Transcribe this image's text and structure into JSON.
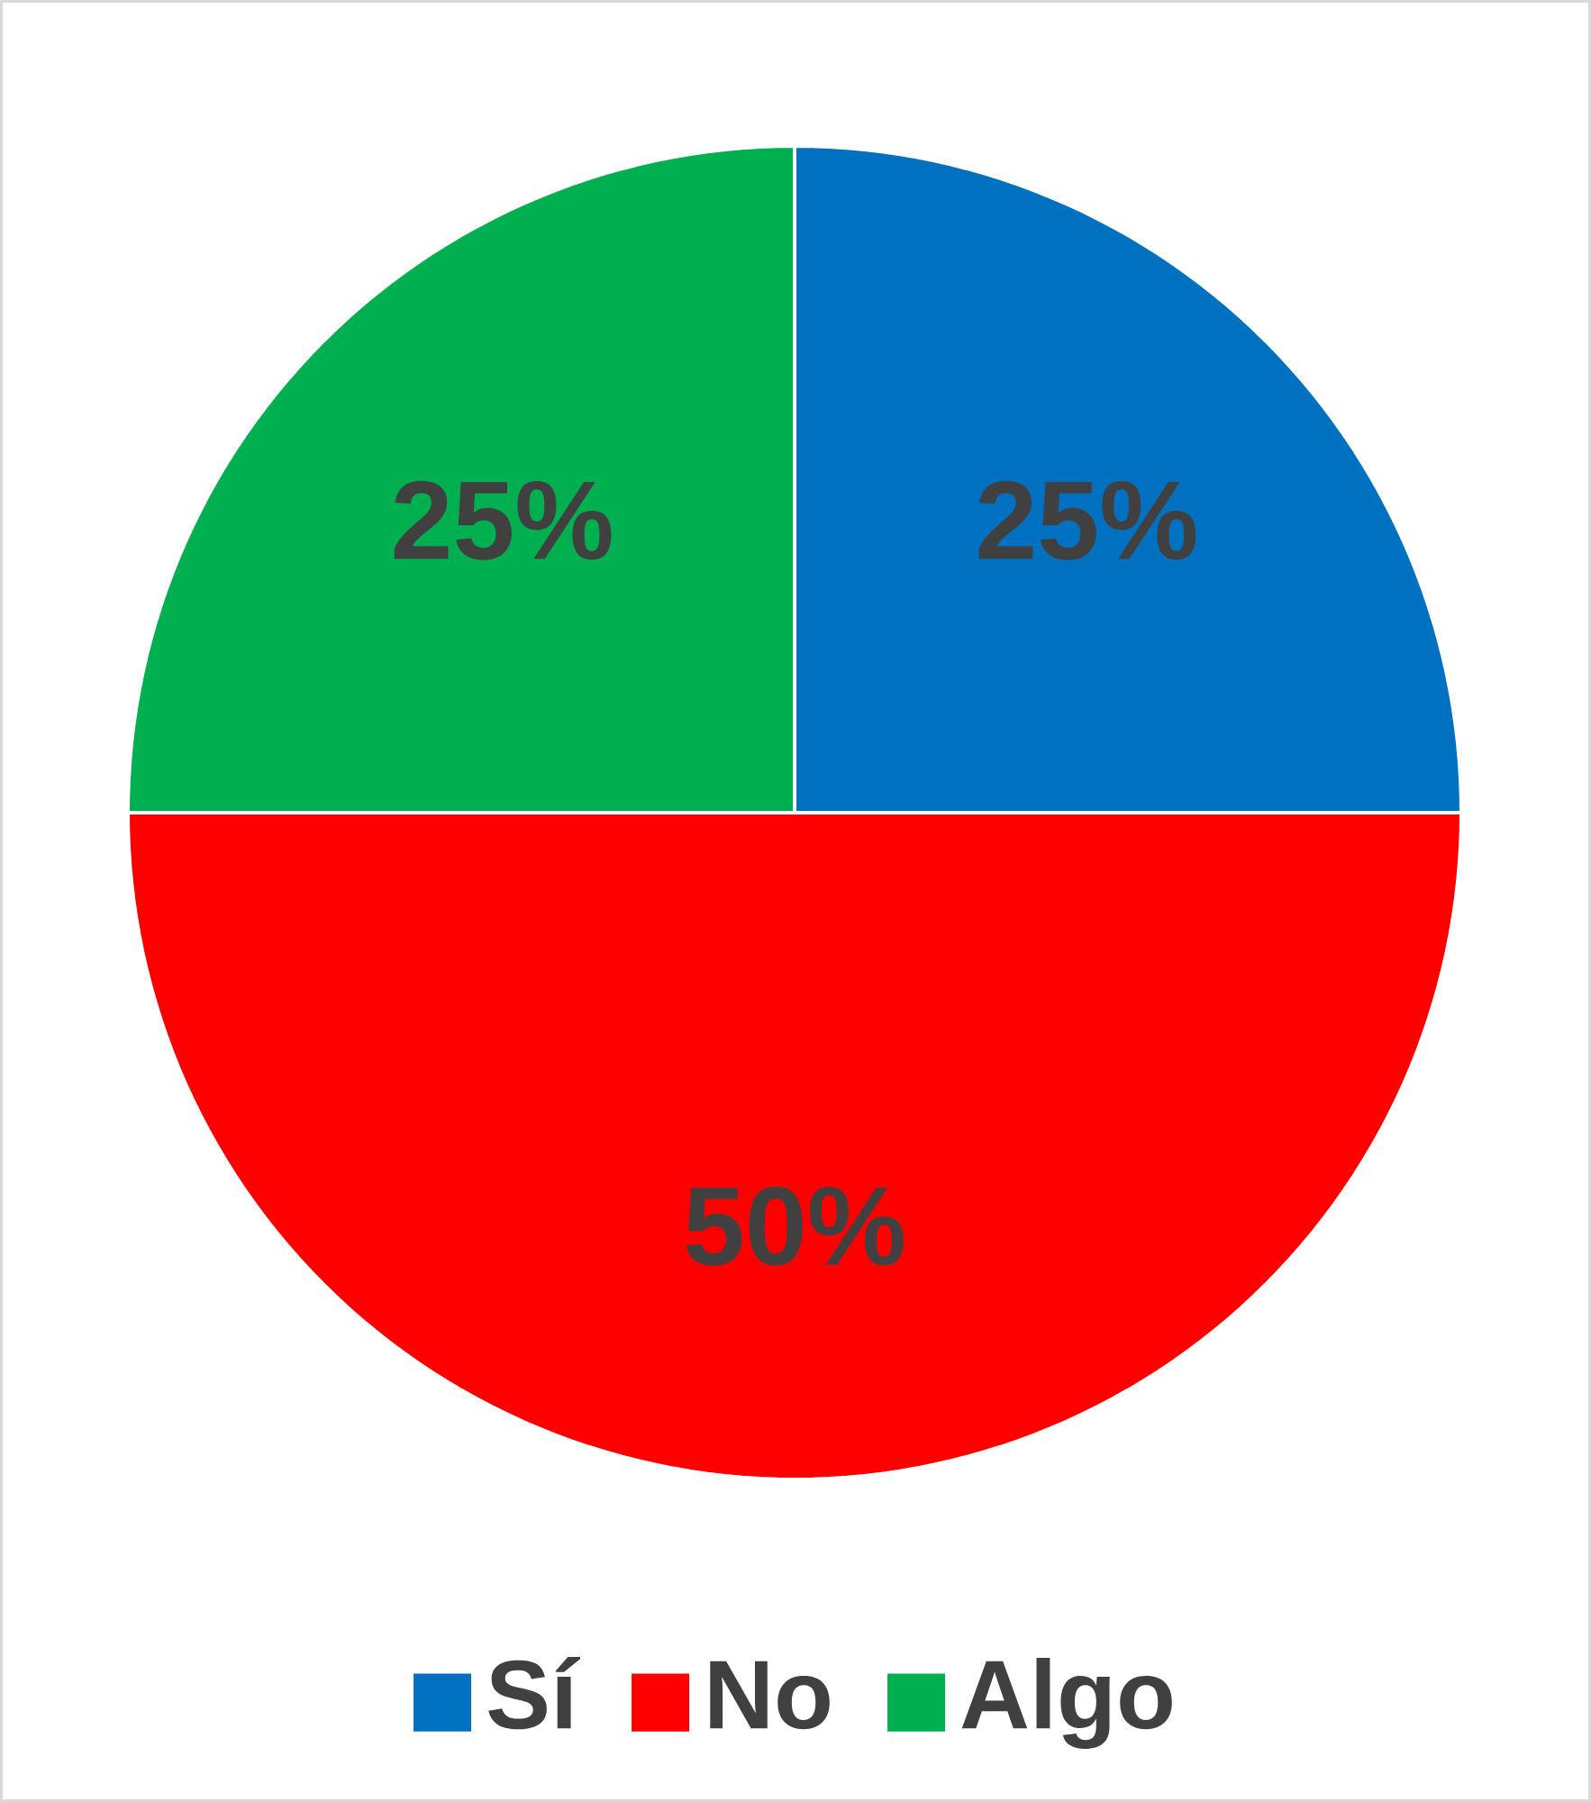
{
  "chart_data": {
    "type": "pie",
    "categories": [
      "Sí",
      "No",
      "Algo"
    ],
    "values": [
      25,
      50,
      25
    ],
    "colors": [
      "#0070c0",
      "#ff0000",
      "#00b050"
    ],
    "value_labels": [
      "25%",
      "50%",
      "25%"
    ],
    "legend": "bottom"
  }
}
